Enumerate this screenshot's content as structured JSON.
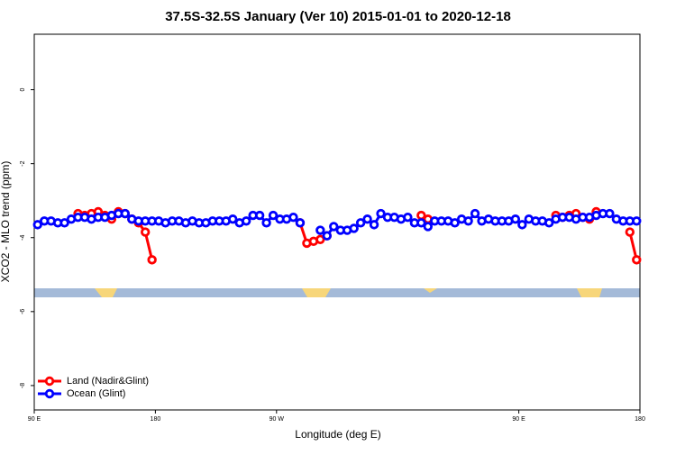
{
  "chart_data": {
    "type": "line",
    "title": "37.5S-32.5S January (Ver 10)   2015-01-01 to 2020-12-18",
    "x_label": "Longitude (deg E)",
    "y_label": "XCO2 - MLO trend (ppm)",
    "xlim": [
      90,
      540
    ],
    "ylim": [
      -8.66,
      1.5
    ],
    "xticks": [
      {
        "value": 90,
        "label": "90 E"
      },
      180,
      {
        "value": 270,
        "label": "90 W"
      },
      {
        "value": 450,
        "label": "90 E"
      },
      {
        "value": 540,
        "label": "180"
      }
    ],
    "yticks": [
      0,
      -2,
      -4,
      -6,
      -8
    ],
    "legend": "bottom-left",
    "x": [
      92.5,
      97.5,
      102.5,
      107.5,
      112.5,
      117.5,
      122.5,
      127.5,
      132.5,
      137.5,
      142.5,
      147.5,
      152.5,
      157.5,
      162.5,
      167.5,
      172.5,
      177.5,
      182.5,
      187.5,
      192.5,
      197.5,
      202.5,
      207.5,
      212.5,
      217.5,
      222.5,
      227.5,
      232.5,
      237.5,
      242.5,
      247.5,
      252.5,
      257.5,
      262.5,
      267.5,
      272.5,
      277.5,
      282.5,
      287.5,
      292.5,
      297.5,
      302.5,
      307.5,
      312.5,
      317.5,
      322.5,
      327.5,
      332.5,
      337.5,
      342.5,
      347.5,
      352.5,
      357.5,
      362.5,
      367.5,
      372.5,
      377.5,
      382.5,
      387.5,
      392.5,
      397.5,
      402.5,
      407.5,
      412.5,
      417.5,
      422.5,
      427.5,
      432.5,
      437.5,
      442.5,
      447.5,
      452.5,
      457.5,
      462.5,
      467.5,
      472.5,
      477.5,
      482.5,
      487.5,
      492.5,
      497.5,
      502.5,
      507.5,
      512.5,
      517.5,
      522.5,
      527.5,
      532.5,
      537.5
    ],
    "series": [
      {
        "name": "Land (Nadir&Glint)",
        "color": "#ff0000",
        "values": [
          null,
          null,
          null,
          null,
          null,
          null,
          -3.35,
          -3.4,
          -3.35,
          -3.3,
          -3.4,
          -3.5,
          -3.3,
          -3.35,
          -3.5,
          -3.6,
          -3.85,
          -4.6,
          null,
          null,
          null,
          null,
          null,
          null,
          null,
          null,
          null,
          null,
          null,
          null,
          null,
          null,
          null,
          null,
          null,
          null,
          null,
          null,
          null,
          -3.6,
          -4.15,
          -4.1,
          -4.05,
          -3.95,
          null,
          null,
          null,
          null,
          null,
          null,
          null,
          null,
          null,
          null,
          null,
          null,
          null,
          -3.4,
          -3.5,
          null,
          null,
          null,
          null,
          null,
          null,
          null,
          null,
          null,
          null,
          null,
          null,
          null,
          null,
          null,
          null,
          null,
          null,
          -3.4,
          -3.45,
          -3.4,
          -3.35,
          -3.45,
          -3.5,
          -3.3,
          null,
          null,
          null,
          null,
          -3.85,
          -4.6
        ]
      },
      {
        "name": "Ocean (Glint)",
        "color": "#0000ff",
        "values": [
          -3.65,
          -3.55,
          -3.55,
          -3.6,
          -3.6,
          -3.5,
          -3.45,
          -3.45,
          -3.5,
          -3.45,
          -3.45,
          -3.4,
          -3.35,
          -3.35,
          -3.5,
          -3.55,
          -3.55,
          -3.55,
          -3.55,
          -3.6,
          -3.55,
          -3.55,
          -3.6,
          -3.55,
          -3.6,
          -3.6,
          -3.55,
          -3.55,
          -3.55,
          -3.5,
          -3.6,
          -3.55,
          -3.4,
          -3.4,
          -3.6,
          -3.4,
          -3.5,
          -3.5,
          -3.45,
          -3.6,
          null,
          null,
          -3.8,
          -3.95,
          -3.7,
          -3.8,
          -3.8,
          -3.75,
          -3.6,
          -3.5,
          -3.65,
          -3.35,
          -3.45,
          -3.45,
          -3.5,
          -3.45,
          -3.6,
          -3.6,
          -3.7,
          -3.55,
          -3.55,
          -3.55,
          -3.6,
          -3.5,
          -3.55,
          -3.35,
          -3.55,
          -3.5,
          -3.55,
          -3.55,
          -3.55,
          -3.5,
          -3.65,
          -3.5,
          -3.55,
          -3.55,
          -3.6,
          -3.5,
          -3.45,
          -3.45,
          -3.5,
          -3.45,
          -3.45,
          -3.4,
          -3.35,
          -3.35,
          -3.5,
          -3.55,
          -3.55,
          -3.55
        ]
      }
    ]
  }
}
